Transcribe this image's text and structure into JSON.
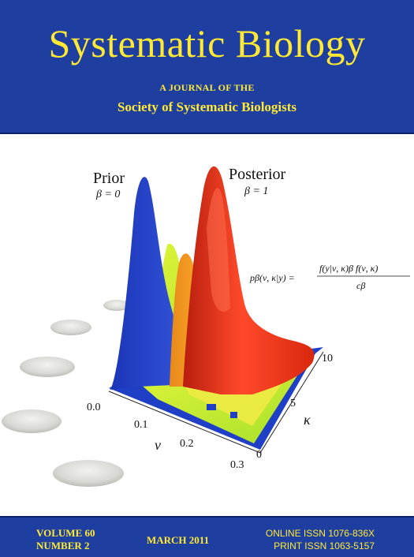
{
  "journal": {
    "title": "Systematic Biology",
    "subtitle_line1": "A JOURNAL OF THE",
    "subtitle_line2": "Society of Systematic Biologists"
  },
  "cover_art": {
    "prior_label": "Prior",
    "prior_beta": "β = 0",
    "posterior_label": "Posterior",
    "posterior_beta": "β = 1",
    "equation": "p_β(ν, κ|y) = f(y|ν, κ)^β f(ν, κ) / c_β",
    "equation_lhs": "pβ(ν, κ|y) =",
    "equation_num": "f(y|ν, κ)β f(ν, κ)",
    "equation_den": "cβ",
    "nu_axis_label": "ν",
    "nu_ticks": [
      "0.0",
      "0.1",
      "0.2",
      "0.3"
    ],
    "kappa_axis_label": "κ",
    "kappa_ticks": [
      "0",
      "5",
      "10"
    ],
    "colors": {
      "prior_surface": "#1f3fc7",
      "posterior_surface": "#e8321a",
      "mid_surface": "#c9f02a"
    }
  },
  "footer": {
    "volume": "VOLUME 60",
    "number": "NUMBER 2",
    "date": "MARCH 2011",
    "online_issn": "ONLINE ISSN 1076-836X",
    "print_issn": "PRINT ISSN 1063-5157"
  }
}
